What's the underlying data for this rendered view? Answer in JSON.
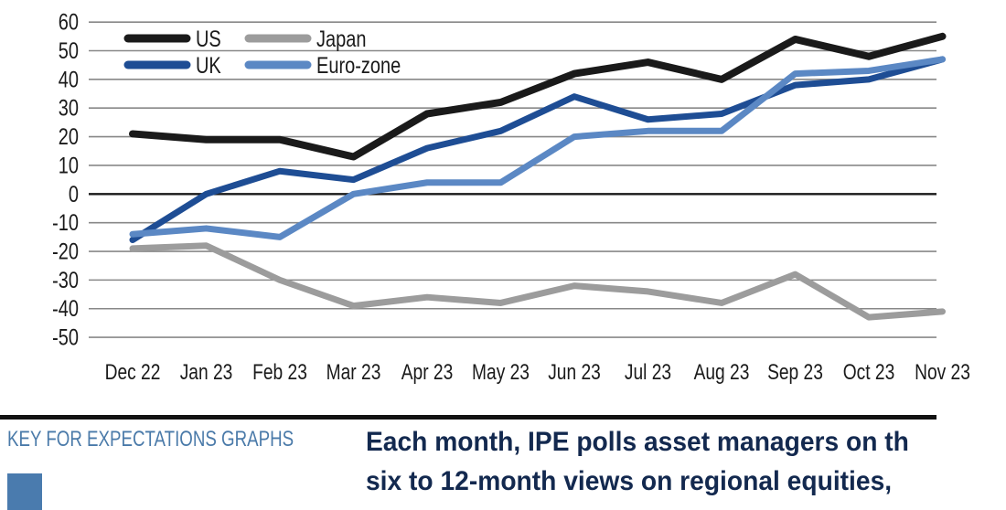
{
  "chart_data": {
    "type": "line",
    "title": "",
    "categories": [
      "Dec 22",
      "Jan 23",
      "Feb 23",
      "Mar 23",
      "Apr 23",
      "May 23",
      "Jun 23",
      "Jul 23",
      "Aug 23",
      "Sep 23",
      "Oct 23",
      "Nov 23"
    ],
    "series": [
      {
        "name": "US",
        "color": "#1a1a1a",
        "values": [
          21,
          19,
          19,
          13,
          28,
          32,
          42,
          46,
          40,
          54,
          48,
          55
        ]
      },
      {
        "name": "UK",
        "color": "#1e4d94",
        "values": [
          -16,
          0,
          8,
          5,
          16,
          22,
          34,
          26,
          28,
          38,
          40,
          47
        ]
      },
      {
        "name": "Japan",
        "color": "#9c9c9c",
        "values": [
          -19,
          -18,
          -30,
          -39,
          -36,
          -38,
          -32,
          -34,
          -38,
          -28,
          -43,
          -41
        ]
      },
      {
        "name": "Euro-zone",
        "color": "#5b88c4",
        "values": [
          -14,
          -12,
          -15,
          0,
          4,
          4,
          20,
          22,
          22,
          42,
          43,
          47
        ]
      }
    ],
    "ylim": [
      -50,
      60
    ],
    "ytick_step": 10,
    "grid": "horizontal",
    "legend_position": "top-left-inside",
    "xlabel": "",
    "ylabel": ""
  },
  "key": {
    "title": "KEY FOR EXPECTATIONS GRAPHS",
    "swatch_color": "#4a7bae"
  },
  "description": {
    "line1": "Each month, IPE polls asset managers on th",
    "line2": "six to 12-month views on regional equities,"
  },
  "colors": {
    "grid": "#888888",
    "zero_line": "#1a1a1a",
    "axis_text": "#1a1a1a",
    "legend_text": "#1a1a1a",
    "key_title": "#4a7aa9",
    "description_text": "#13294f",
    "divider": "#121212"
  }
}
